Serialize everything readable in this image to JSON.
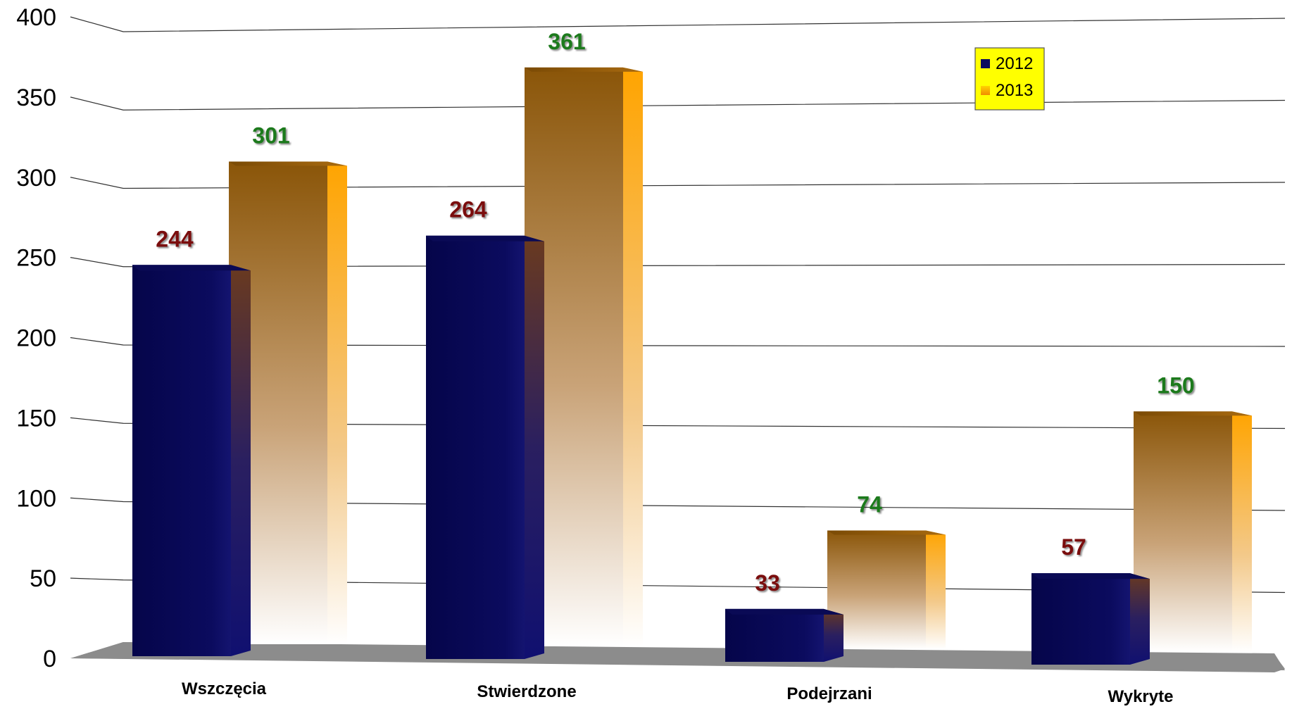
{
  "chart_data": {
    "type": "bar",
    "categories": [
      "Wszczęcia",
      "Stwierdzone",
      "Podejrzani",
      "Wykryte"
    ],
    "series": [
      {
        "name": "2012",
        "values": [
          244,
          264,
          33,
          57
        ],
        "color": "#0b0b5e",
        "label_color": "#7a1010"
      },
      {
        "name": "2013",
        "values": [
          301,
          361,
          74,
          150
        ],
        "color": "#f5a623",
        "label_color": "#1f7a1f"
      }
    ],
    "ylim": [
      0,
      400
    ],
    "yticks": [
      "0",
      "50",
      "100",
      "150",
      "200",
      "250",
      "300",
      "350",
      "400"
    ],
    "grid": true,
    "legend": {
      "position": "top-right",
      "background": "#ffff00"
    },
    "floor_color": "#8c8c8c"
  }
}
